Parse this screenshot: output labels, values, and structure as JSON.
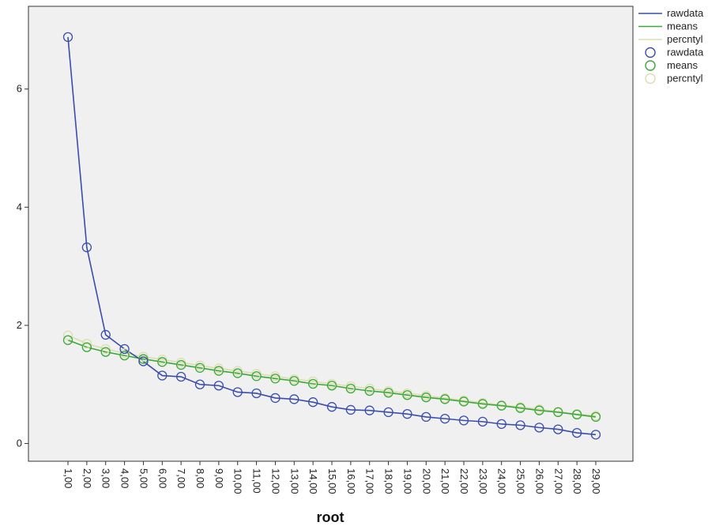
{
  "chart_data": {
    "type": "line",
    "title": "",
    "xlabel": "root",
    "ylabel": "",
    "categories": [
      "1,00",
      "2,00",
      "3,00",
      "4,00",
      "5,00",
      "6,00",
      "7,00",
      "8,00",
      "9,00",
      "10,00",
      "11,00",
      "12,00",
      "13,00",
      "14,00",
      "15,00",
      "16,00",
      "17,00",
      "18,00",
      "19,00",
      "20,00",
      "21,00",
      "22,00",
      "23,00",
      "24,00",
      "25,00",
      "26,00",
      "27,00",
      "28,00",
      "29,00"
    ],
    "ylim": [
      -0.3,
      7.4
    ],
    "yticks": [
      0,
      2,
      4,
      6
    ],
    "ytick_labels": [
      "0",
      "2",
      "4",
      "6"
    ],
    "grid": false,
    "legend_position": "right",
    "legend_items": [
      {
        "label": "rawdata",
        "kind": "line",
        "color": "#3a4dab"
      },
      {
        "label": "means",
        "kind": "line",
        "color": "#3aa83a"
      },
      {
        "label": "percntyl",
        "kind": "line",
        "color": "#ddddb0"
      },
      {
        "label": "rawdata",
        "kind": "marker",
        "color": "#3a4dab"
      },
      {
        "label": "means",
        "kind": "marker",
        "color": "#3aa83a"
      },
      {
        "label": "percntyl",
        "kind": "marker",
        "color": "#ddddb0"
      }
    ],
    "series": [
      {
        "name": "percntyl",
        "color": "#ddddb0",
        "values": [
          1.83,
          1.69,
          1.6,
          1.53,
          1.47,
          1.42,
          1.37,
          1.32,
          1.27,
          1.23,
          1.18,
          1.14,
          1.09,
          1.05,
          1.01,
          0.97,
          0.93,
          0.89,
          0.85,
          0.81,
          0.77,
          0.73,
          0.69,
          0.65,
          0.62,
          0.58,
          0.54,
          0.5,
          0.47
        ]
      },
      {
        "name": "means",
        "color": "#3aa83a",
        "values": [
          1.75,
          1.63,
          1.55,
          1.49,
          1.43,
          1.38,
          1.33,
          1.28,
          1.23,
          1.19,
          1.14,
          1.1,
          1.06,
          1.01,
          0.98,
          0.93,
          0.89,
          0.86,
          0.82,
          0.78,
          0.75,
          0.71,
          0.67,
          0.64,
          0.6,
          0.56,
          0.53,
          0.49,
          0.45
        ]
      },
      {
        "name": "rawdata",
        "color": "#3a4dab",
        "values": [
          6.88,
          3.32,
          1.84,
          1.6,
          1.39,
          1.15,
          1.13,
          1.0,
          0.98,
          0.87,
          0.85,
          0.77,
          0.75,
          0.7,
          0.62,
          0.57,
          0.56,
          0.53,
          0.5,
          0.45,
          0.42,
          0.39,
          0.37,
          0.33,
          0.31,
          0.27,
          0.24,
          0.18,
          0.15
        ]
      }
    ]
  },
  "colors": {
    "plot_background": "#f0f0f0",
    "frame": "#333333"
  }
}
